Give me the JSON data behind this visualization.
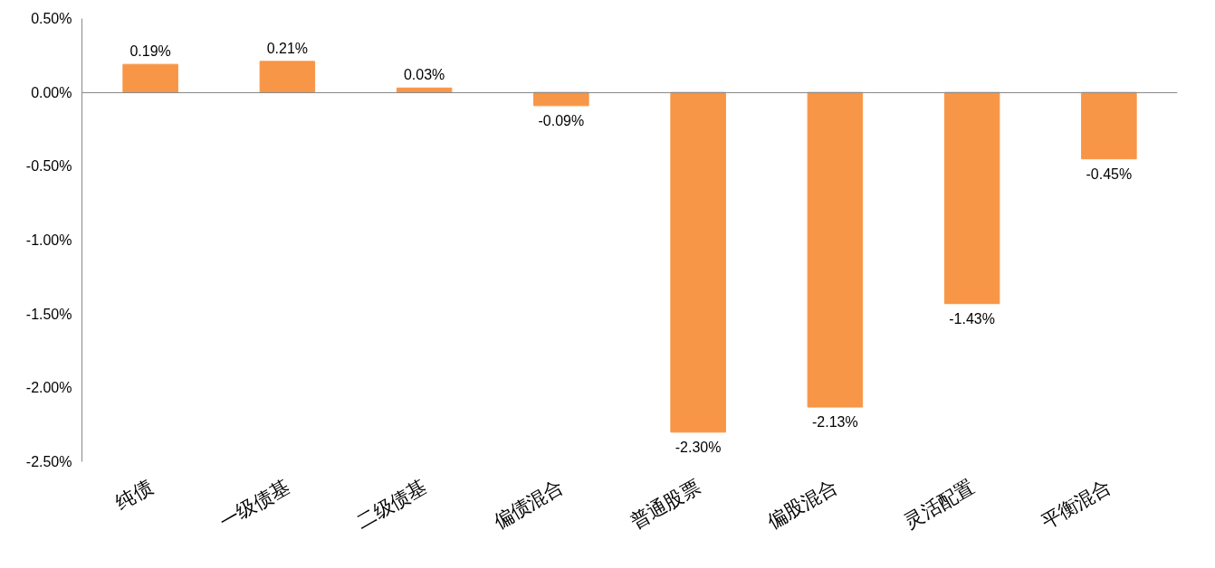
{
  "chart_data": {
    "type": "bar",
    "categories": [
      "纯债",
      "一级债基",
      "二级债基",
      "偏债混合",
      "普通股票",
      "偏股混合",
      "灵活配置",
      "平衡混合"
    ],
    "values": [
      0.19,
      0.21,
      0.03,
      -0.09,
      -2.3,
      -2.13,
      -1.43,
      -0.45
    ],
    "value_labels": [
      "0.19%",
      "0.21%",
      "0.03%",
      "-0.09%",
      "-2.30%",
      "-2.13%",
      "-1.43%",
      "-0.45%"
    ],
    "color": "#f79646",
    "ylim": [
      -2.5,
      0.5
    ],
    "yticks": [
      {
        "value": 0.5,
        "label": "0.50%"
      },
      {
        "value": 0.0,
        "label": "0.00%"
      },
      {
        "value": -0.5,
        "label": "-0.50%"
      },
      {
        "value": -1.0,
        "label": "-1.00%"
      },
      {
        "value": -1.5,
        "label": "-1.50%"
      },
      {
        "value": -2.0,
        "label": "-2.00%"
      },
      {
        "value": -2.5,
        "label": "-2.50%"
      }
    ]
  }
}
